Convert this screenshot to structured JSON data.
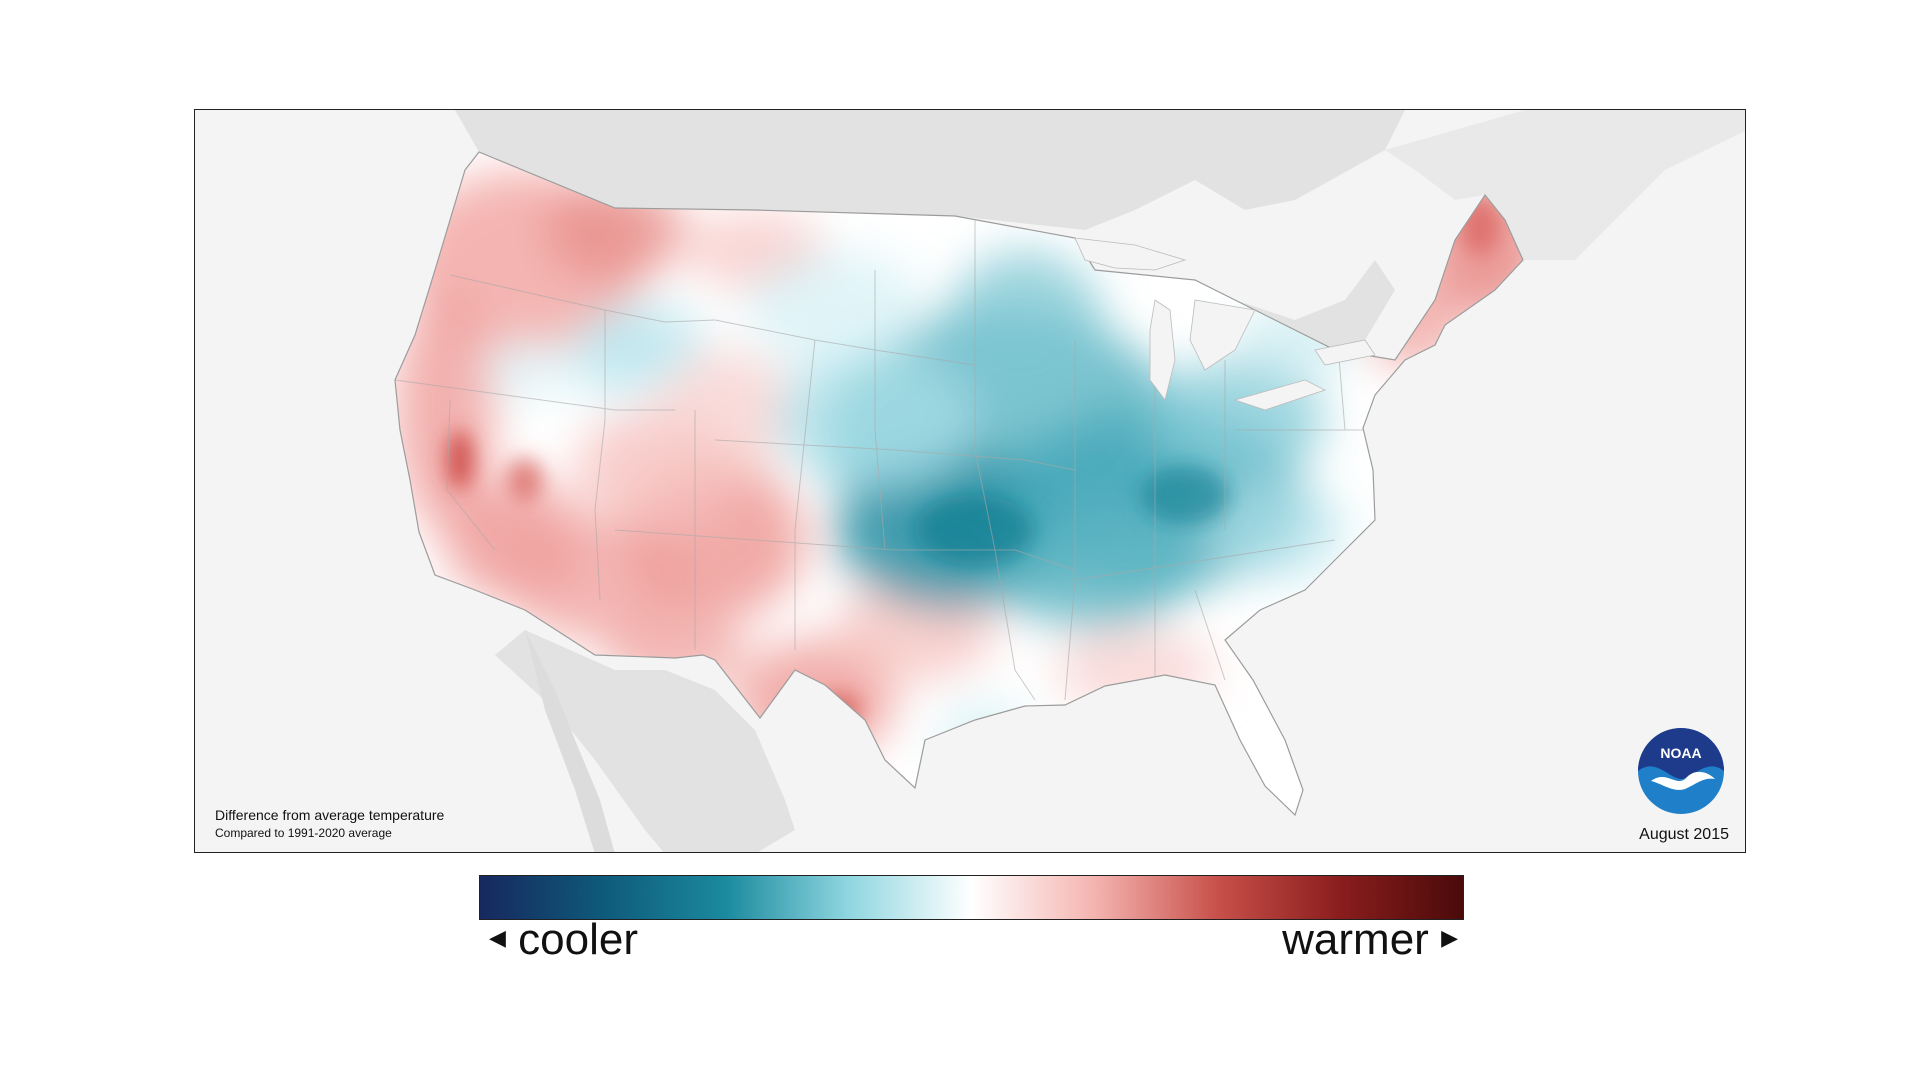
{
  "caption": {
    "title": "Difference from average temperature",
    "subtitle": "Compared to 1991-2020 average"
  },
  "date": "August 2015",
  "logo": {
    "text": "NOAA",
    "colors": {
      "top": "#1e3a8a",
      "bottom": "#1f7fc8"
    }
  },
  "legend": {
    "left_label": "cooler",
    "right_label": "warmer",
    "left_arrow": "◀",
    "right_arrow": "▶",
    "gradient": [
      "#17285e",
      "#0e5a7a",
      "#1b8a9e",
      "#8fd6e0",
      "#ffffff",
      "#f4b4b0",
      "#c8504a",
      "#8a1d1d",
      "#4a0a0a"
    ]
  },
  "map": {
    "anomaly_pattern": "warm west and northeast, cool central and Ohio Valley",
    "colors": {
      "background": "#f4f4f4",
      "land_outside": "#e2e2e2",
      "warm": "#e88a88",
      "cool": "#3aa0b0",
      "neutral": "#ffffff"
    }
  }
}
